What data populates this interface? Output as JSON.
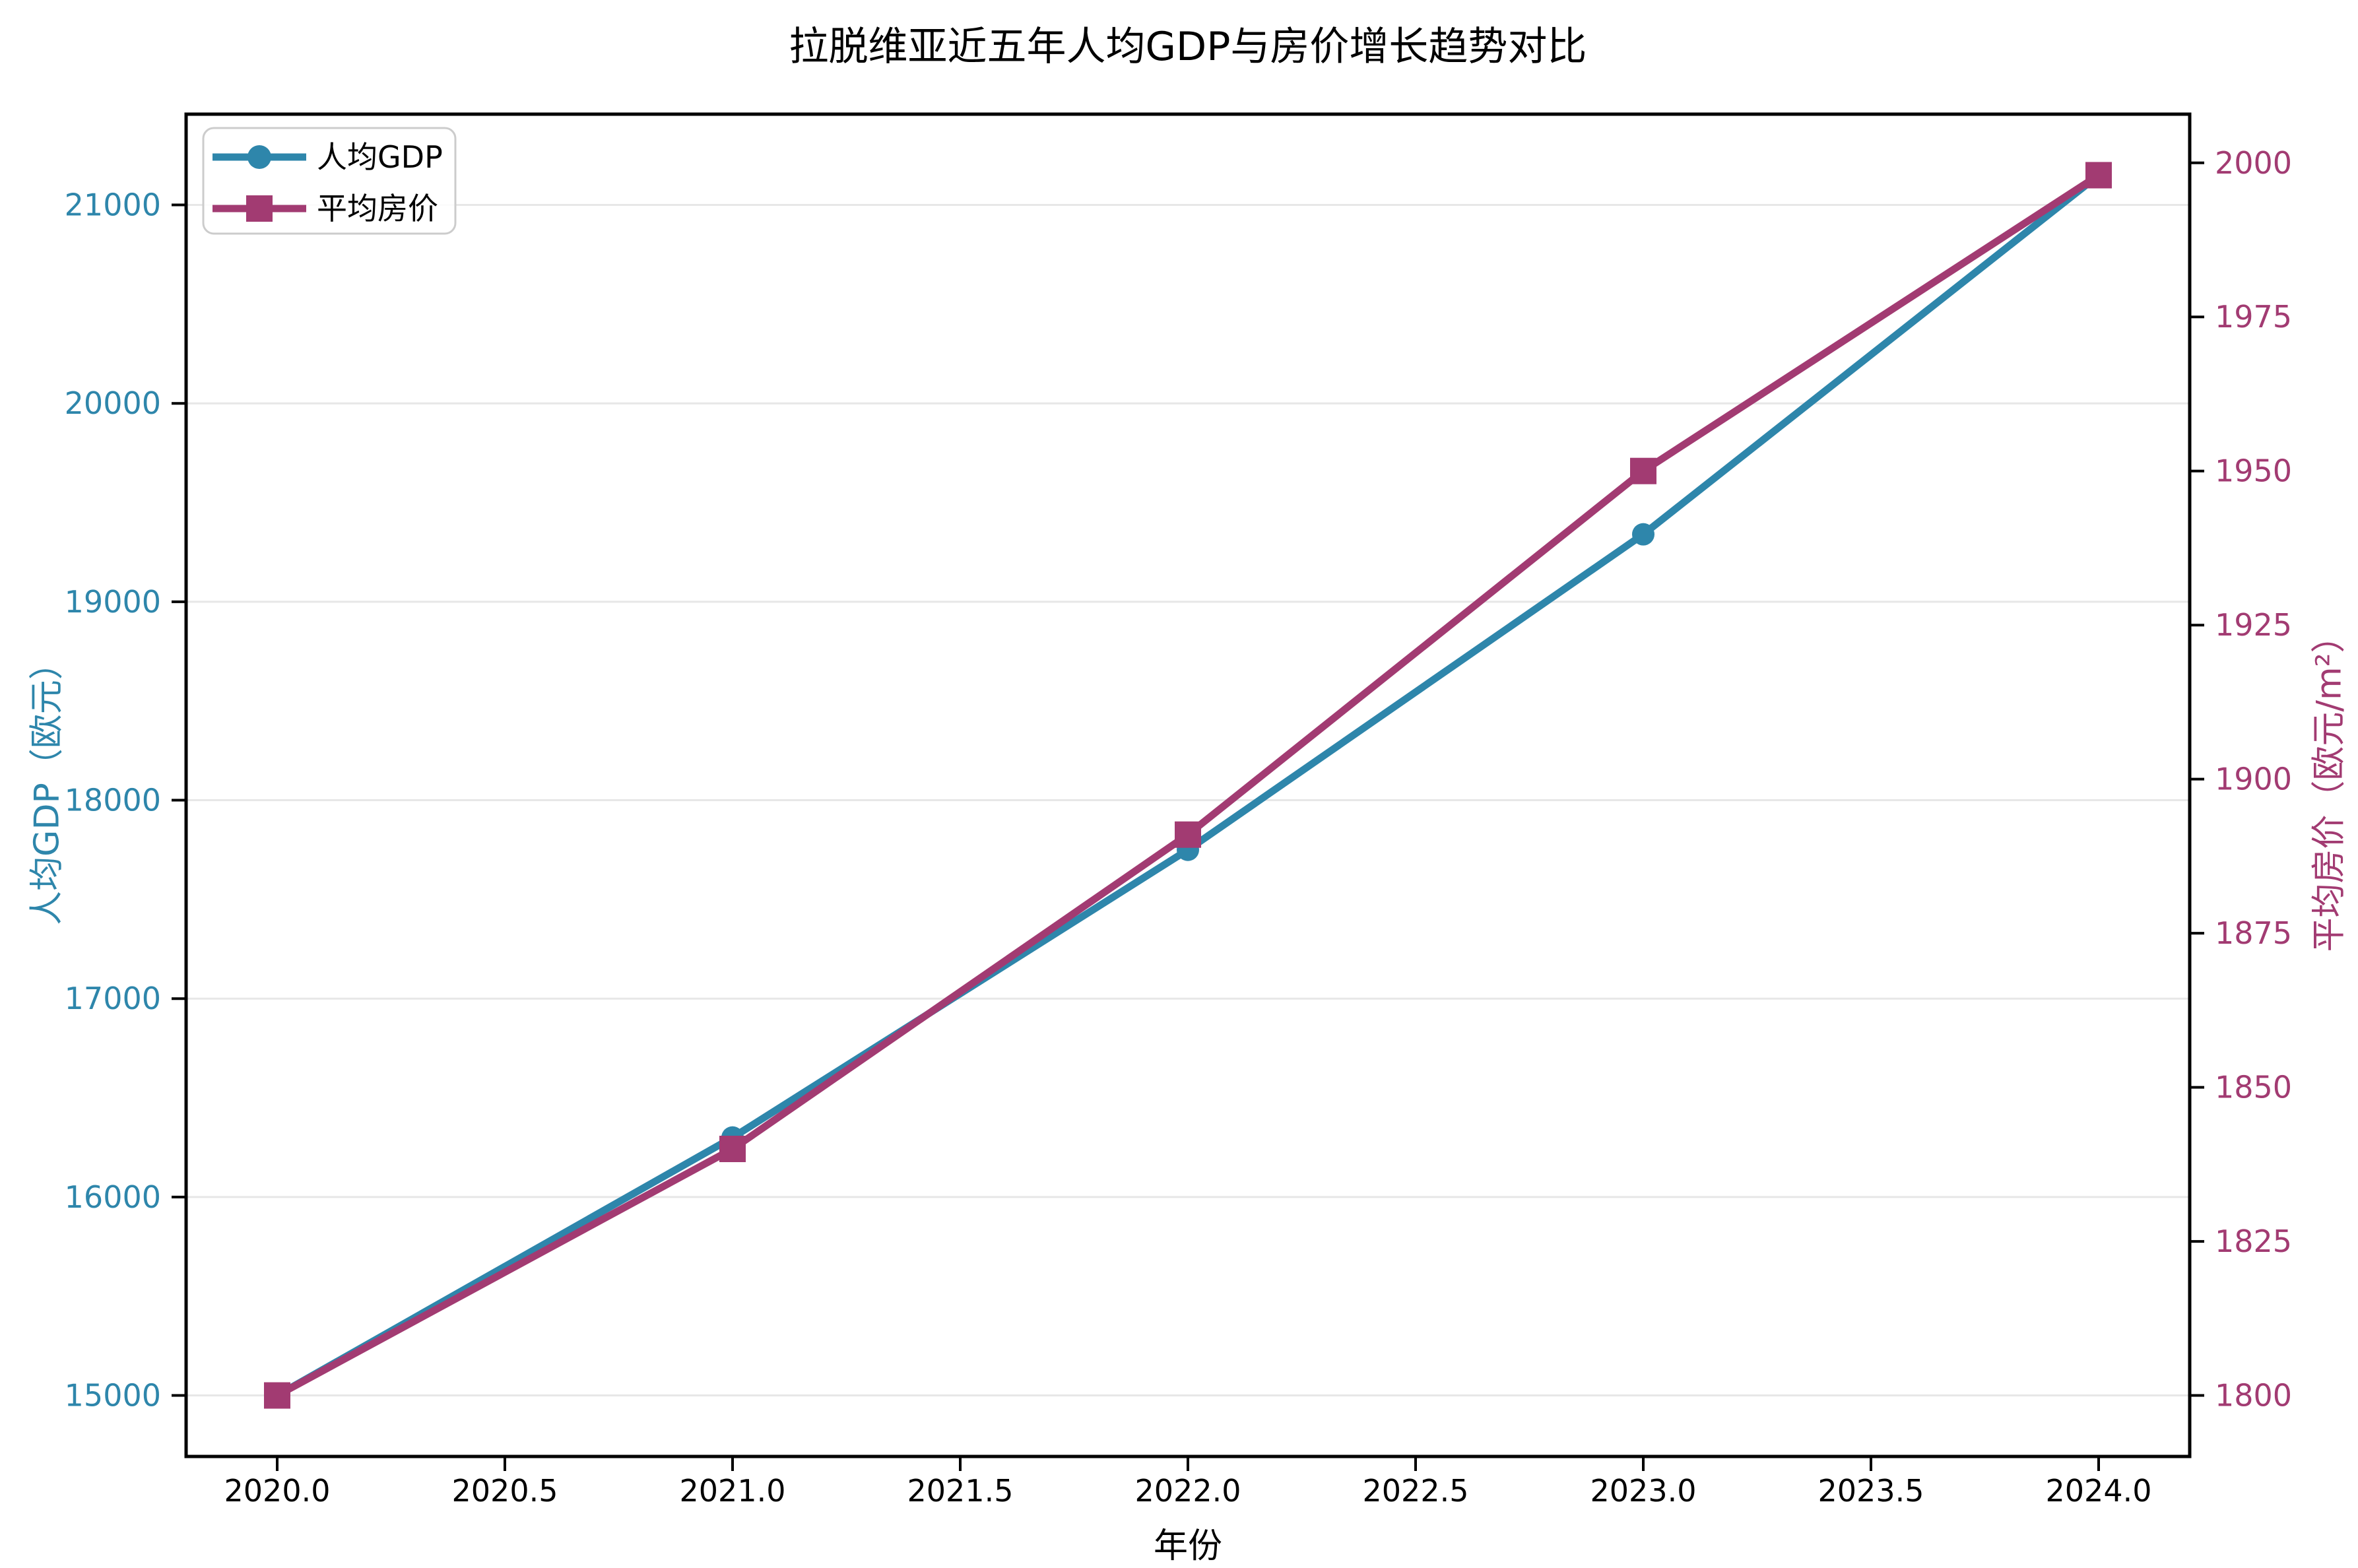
{
  "chart_data": {
    "type": "line",
    "title": "拉脱维亚近五年人均GDP与房价增长趋势对比",
    "xlabel": "年份",
    "x": [
      2020,
      2021,
      2022,
      2023,
      2024
    ],
    "series": [
      {
        "name": "人均GDP",
        "axis": "left",
        "color": "#2E86AB",
        "marker": "circle",
        "values": [
          15000,
          16300,
          17750,
          19340,
          21150
        ]
      },
      {
        "name": "平均房价",
        "axis": "right",
        "color": "#A23B72",
        "marker": "square",
        "values": [
          1800,
          1840,
          1891,
          1950,
          1998
        ]
      }
    ],
    "axes": {
      "x": {
        "label": "年份",
        "ticks": [
          2020.0,
          2020.5,
          2021.0,
          2021.5,
          2022.0,
          2022.5,
          2023.0,
          2023.5,
          2024.0
        ],
        "tick_labels": [
          "2020.0",
          "2020.5",
          "2021.0",
          "2021.5",
          "2022.0",
          "2022.5",
          "2023.0",
          "2023.5",
          "2024.0"
        ],
        "lim": [
          2019.8,
          2024.2
        ]
      },
      "left": {
        "label": "人均GDP（欧元）",
        "color": "#2E86AB",
        "ticks": [
          15000,
          16000,
          17000,
          18000,
          19000,
          20000,
          21000
        ],
        "tick_labels": [
          "15000",
          "16000",
          "17000",
          "18000",
          "19000",
          "20000",
          "21000"
        ],
        "lim": [
          14692.5,
          21457.5
        ]
      },
      "right": {
        "label": "平均房价（欧元/m²）",
        "color": "#A23B72",
        "ticks": [
          1800,
          1825,
          1850,
          1875,
          1900,
          1925,
          1950,
          1975,
          2000
        ],
        "tick_labels": [
          "1800",
          "1825",
          "1850",
          "1875",
          "1900",
          "1925",
          "1950",
          "1975",
          "2000"
        ],
        "lim": [
          1790.1,
          2007.9
        ]
      }
    },
    "legend": {
      "position": "upper left",
      "entries": [
        "人均GDP",
        "平均房价"
      ]
    },
    "grid": "horizontal",
    "grid_color": "#e7e7e7",
    "background_color": "#ffffff"
  }
}
